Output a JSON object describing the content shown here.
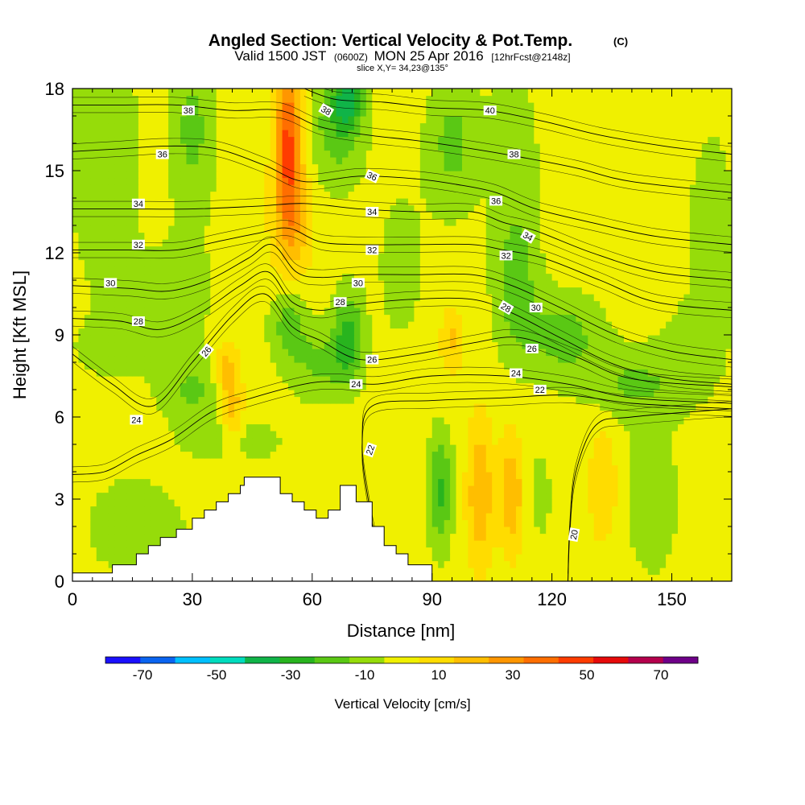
{
  "header": {
    "title_main": "Angled Section: Vertical Velocity & Pot.Temp.",
    "title_suffix": "(C)",
    "valid_prefix": "Valid 1500 JST",
    "valid_utc": "(0600Z)",
    "valid_date": "MON 25 Apr 2016",
    "forecast_info": "[12hrFcst@2148z]",
    "slice_info": "slice X,Y= 34,23@135°"
  },
  "chart_data": {
    "type": "heatmap",
    "xlabel": "Distance [nm]",
    "ylabel": "Height [Kft MSL]",
    "xlim": [
      0,
      165
    ],
    "ylim": [
      0,
      18
    ],
    "x_ticks": [
      "0",
      "30",
      "60",
      "90",
      "120",
      "150"
    ],
    "x_tick_values": [
      0,
      30,
      60,
      90,
      120,
      150
    ],
    "y_ticks": [
      "0",
      "3",
      "6",
      "9",
      "12",
      "15",
      "18"
    ],
    "y_tick_values": [
      0,
      3,
      6,
      9,
      12,
      15,
      18
    ],
    "colorbar": {
      "label": "Vertical Velocity [cm/s]",
      "bounds": [
        -80,
        -70,
        -60,
        -50,
        -40,
        -30,
        -20,
        -10,
        0,
        10,
        20,
        30,
        40,
        50,
        60,
        70,
        80
      ],
      "tick_labels": [
        "-70",
        "-50",
        "-30",
        "-10",
        "10",
        "30",
        "50",
        "70"
      ],
      "tick_values": [
        -70,
        -50,
        -30,
        -10,
        10,
        30,
        50,
        70
      ],
      "colors": [
        "#1a10ff",
        "#0a64f0",
        "#00c0ff",
        "#00dcbe",
        "#10b448",
        "#28b41e",
        "#5ac814",
        "#96dc0a",
        "#f0f000",
        "#ffdc00",
        "#ffbe00",
        "#ff9600",
        "#ff6e00",
        "#ff3c00",
        "#e60a0a",
        "#b4004c",
        "#6e0088"
      ]
    },
    "background_value": 5,
    "velocity_features": [
      {
        "x": 8,
        "y": 15.5,
        "sx": 6,
        "sy": 3.5,
        "value": -14
      },
      {
        "x": 30,
        "y": 16.5,
        "sx": 4,
        "sy": 2.2,
        "value": -18
      },
      {
        "x": 26,
        "y": 10.5,
        "sx": 8,
        "sy": 1.6,
        "value": -9
      },
      {
        "x": 10,
        "y": 8.5,
        "sx": 8,
        "sy": 0.8,
        "value": -8
      },
      {
        "x": 30,
        "y": 7.0,
        "sx": 6,
        "sy": 0.8,
        "value": -16
      },
      {
        "x": 40,
        "y": 5.2,
        "sx": 9,
        "sy": 0.6,
        "value": -11
      },
      {
        "x": 15,
        "y": 2.0,
        "sx": 10,
        "sy": 1.6,
        "value": -9
      },
      {
        "x": 54,
        "y": 16.2,
        "sx": 2.3,
        "sy": 2.0,
        "value": 46
      },
      {
        "x": 55,
        "y": 13.2,
        "sx": 3.5,
        "sy": 1.6,
        "value": 22
      },
      {
        "x": 54,
        "y": 9.5,
        "sx": 3.2,
        "sy": 1.0,
        "value": -19
      },
      {
        "x": 62,
        "y": 8.0,
        "sx": 6,
        "sy": 1.0,
        "value": -16
      },
      {
        "x": 69,
        "y": 9.0,
        "sx": 2.6,
        "sy": 1.2,
        "value": -26
      },
      {
        "x": 66,
        "y": 16.6,
        "sx": 5,
        "sy": 1.6,
        "value": -20
      },
      {
        "x": 69,
        "y": 17.6,
        "sx": 2.5,
        "sy": 0.8,
        "value": -30
      },
      {
        "x": 82,
        "y": 11.5,
        "sx": 5,
        "sy": 2.4,
        "value": -8
      },
      {
        "x": 95,
        "y": 16.0,
        "sx": 4.5,
        "sy": 1.8,
        "value": -18
      },
      {
        "x": 110,
        "y": 16.0,
        "sx": 5,
        "sy": 2.0,
        "value": -10
      },
      {
        "x": 111,
        "y": 11.0,
        "sx": 4,
        "sy": 2.0,
        "value": -20
      },
      {
        "x": 123,
        "y": 9.0,
        "sx": 7,
        "sy": 1.1,
        "value": -19
      },
      {
        "x": 140,
        "y": 7.2,
        "sx": 9,
        "sy": 0.9,
        "value": -15
      },
      {
        "x": 155,
        "y": 8.5,
        "sx": 6,
        "sy": 1.2,
        "value": -9
      },
      {
        "x": 92,
        "y": 3.3,
        "sx": 2.2,
        "sy": 1.5,
        "value": -27
      },
      {
        "x": 102,
        "y": 3.2,
        "sx": 2.2,
        "sy": 1.8,
        "value": 26
      },
      {
        "x": 110,
        "y": 3.2,
        "sx": 2.2,
        "sy": 1.5,
        "value": 24
      },
      {
        "x": 117,
        "y": 3.2,
        "sx": 3,
        "sy": 1.8,
        "value": -7
      },
      {
        "x": 133,
        "y": 3.5,
        "sx": 2.5,
        "sy": 1.5,
        "value": 16
      },
      {
        "x": 145,
        "y": 3.0,
        "sx": 6,
        "sy": 2.5,
        "value": -9
      },
      {
        "x": 40,
        "y": 6.3,
        "sx": 2.0,
        "sy": 1.2,
        "value": 22
      },
      {
        "x": 38,
        "y": 7.8,
        "sx": 2.0,
        "sy": 0.7,
        "value": 16
      },
      {
        "x": 48,
        "y": 1.5,
        "sx": 10,
        "sy": 1.5,
        "value": -9
      },
      {
        "x": 95,
        "y": 8.8,
        "sx": 2,
        "sy": 0.8,
        "value": 17
      },
      {
        "x": 160,
        "y": 13.0,
        "sx": 5,
        "sy": 3.0,
        "value": -9
      }
    ],
    "isentropes": [
      {
        "label": "20",
        "points": [
          [
            124,
            0
          ],
          [
            124.5,
            2
          ],
          [
            126,
            4
          ],
          [
            131,
            5.7
          ],
          [
            140,
            6
          ],
          [
            165,
            6.3
          ]
        ],
        "label_at": [
          125.5,
          1.7
        ]
      },
      {
        "label": "22",
        "points": [
          [
            82,
            0
          ],
          [
            77,
            1
          ],
          [
            74,
            3
          ],
          [
            72.5,
            5
          ],
          [
            75,
            6.4
          ],
          [
            90,
            6.6
          ],
          [
            108,
            6.7
          ],
          [
            124,
            6.8
          ],
          [
            140,
            6.5
          ],
          [
            165,
            6.3
          ]
        ],
        "label_at": [
          74,
          4.9
        ]
      },
      {
        "label": "24",
        "points": [
          [
            0,
            3.9
          ],
          [
            8,
            4
          ],
          [
            16,
            4.6
          ],
          [
            25,
            5.2
          ],
          [
            35,
            6.2
          ],
          [
            45,
            6.7
          ],
          [
            58,
            7.2
          ],
          [
            66,
            7.3
          ],
          [
            76,
            7.2
          ],
          [
            90,
            7.5
          ],
          [
            108,
            7.5
          ],
          [
            124,
            7.2
          ],
          [
            140,
            6.7
          ],
          [
            165,
            6.5
          ]
        ],
        "label_at": [
          15,
          5.9
        ]
      },
      {
        "label": "26",
        "points": [
          [
            0,
            8.3
          ],
          [
            10,
            7.2
          ],
          [
            20,
            6.4
          ],
          [
            30,
            8
          ],
          [
            40,
            9.7
          ],
          [
            48,
            10.5
          ],
          [
            55,
            9.3
          ],
          [
            62,
            8.8
          ],
          [
            72,
            8.1
          ],
          [
            86,
            8.3
          ],
          [
            100,
            8.7
          ],
          [
            112,
            8.9
          ],
          [
            126,
            8.2
          ],
          [
            140,
            7.4
          ],
          [
            165,
            7.1
          ]
        ],
        "label_at": [
          33.5,
          8.4
        ]
      },
      {
        "label": "28",
        "points": [
          [
            0,
            9.6
          ],
          [
            12,
            9.5
          ],
          [
            22,
            9.2
          ],
          [
            32,
            9.8
          ],
          [
            42,
            10.8
          ],
          [
            49,
            11.3
          ],
          [
            55,
            10.2
          ],
          [
            62,
            9.9
          ],
          [
            70,
            10.1
          ],
          [
            85,
            10.3
          ],
          [
            100,
            10.3
          ],
          [
            110,
            9.8
          ],
          [
            122,
            8.9
          ],
          [
            136,
            7.9
          ],
          [
            150,
            7.4
          ],
          [
            165,
            7.2
          ]
        ],
        "label_at": [
          108,
          10.0
        ]
      },
      {
        "label": "30",
        "points": [
          [
            0,
            10.8
          ],
          [
            14,
            10.7
          ],
          [
            24,
            10.6
          ],
          [
            34,
            11
          ],
          [
            44,
            11.8
          ],
          [
            50,
            12.3
          ],
          [
            56,
            11.3
          ],
          [
            62,
            11.1
          ],
          [
            72,
            11.2
          ],
          [
            86,
            11.2
          ],
          [
            100,
            11.2
          ],
          [
            110,
            10.8
          ],
          [
            122,
            10.0
          ],
          [
            136,
            9.0
          ],
          [
            150,
            8.4
          ],
          [
            165,
            8.1
          ]
        ],
        "label_at": [
          116,
          10.0
        ]
      },
      {
        "label": "32",
        "points": [
          [
            0,
            12.1
          ],
          [
            14,
            12.1
          ],
          [
            26,
            12.1
          ],
          [
            36,
            12.4
          ],
          [
            46,
            12.7
          ],
          [
            54,
            12.9
          ],
          [
            62,
            12.4
          ],
          [
            72,
            12.3
          ],
          [
            86,
            12.3
          ],
          [
            100,
            12.3
          ],
          [
            108,
            12.1
          ],
          [
            118,
            11.8
          ],
          [
            132,
            11.0
          ],
          [
            146,
            10.2
          ],
          [
            165,
            9.9
          ]
        ],
        "label_at": [
          15,
          12.3
        ]
      },
      {
        "label": "34",
        "points": [
          [
            0,
            13.6
          ],
          [
            14,
            13.6
          ],
          [
            30,
            13.6
          ],
          [
            46,
            13.7
          ],
          [
            58,
            13.8
          ],
          [
            72,
            13.6
          ],
          [
            86,
            13.5
          ],
          [
            100,
            13.5
          ],
          [
            108,
            13.1
          ],
          [
            116,
            12.8
          ],
          [
            130,
            12.0
          ],
          [
            146,
            11.3
          ],
          [
            165,
            11.0
          ]
        ],
        "label_at": [
          15,
          13.7
        ]
      },
      {
        "label": "36",
        "points": [
          [
            0,
            15.7
          ],
          [
            12,
            15.8
          ],
          [
            24,
            15.9
          ],
          [
            36,
            15.8
          ],
          [
            48,
            15.2
          ],
          [
            58,
            14.6
          ],
          [
            72,
            14.8
          ],
          [
            86,
            14.7
          ],
          [
            96,
            14.5
          ],
          [
            106,
            14.2
          ],
          [
            116,
            13.6
          ],
          [
            130,
            13.1
          ],
          [
            146,
            12.6
          ],
          [
            165,
            12.3
          ]
        ],
        "label_at": [
          22.5,
          15.6
        ]
      },
      {
        "label": "38",
        "points": [
          [
            0,
            17.4
          ],
          [
            12,
            17.4
          ],
          [
            26,
            17.4
          ],
          [
            40,
            17.2
          ],
          [
            52,
            17.2
          ],
          [
            62,
            16.6
          ],
          [
            74,
            16.3
          ],
          [
            86,
            16.1
          ],
          [
            100,
            15.8
          ],
          [
            112,
            15.5
          ],
          [
            126,
            15.1
          ],
          [
            140,
            14.6
          ],
          [
            165,
            14.2
          ]
        ],
        "label_at": [
          26,
          17.2
        ]
      },
      {
        "label": "40",
        "points": [
          [
            58,
            18
          ],
          [
            66,
            17.6
          ],
          [
            78,
            17.5
          ],
          [
            90,
            17.3
          ],
          [
            104,
            17.2
          ],
          [
            118,
            16.8
          ],
          [
            132,
            16.3
          ],
          [
            148,
            15.9
          ],
          [
            165,
            15.6
          ]
        ],
        "label_at": [
          104,
          17.2
        ]
      }
    ],
    "terrain": [
      [
        0,
        0.3
      ],
      [
        10,
        0.3
      ],
      [
        10,
        0.6
      ],
      [
        16,
        0.6
      ],
      [
        16,
        1.0
      ],
      [
        19,
        1.0
      ],
      [
        19,
        1.3
      ],
      [
        22,
        1.3
      ],
      [
        22,
        1.6
      ],
      [
        26,
        1.6
      ],
      [
        26,
        1.9
      ],
      [
        30,
        1.9
      ],
      [
        30,
        2.3
      ],
      [
        33,
        2.3
      ],
      [
        33,
        2.6
      ],
      [
        36,
        2.6
      ],
      [
        36,
        2.9
      ],
      [
        39,
        2.9
      ],
      [
        39,
        3.2
      ],
      [
        42,
        3.2
      ],
      [
        42,
        3.5
      ],
      [
        43,
        3.5
      ],
      [
        43,
        3.8
      ],
      [
        52,
        3.8
      ],
      [
        52,
        3.2
      ],
      [
        55,
        3.2
      ],
      [
        55,
        2.9
      ],
      [
        58,
        2.9
      ],
      [
        58,
        2.6
      ],
      [
        61,
        2.6
      ],
      [
        61,
        2.3
      ],
      [
        64,
        2.3
      ],
      [
        64,
        2.6
      ],
      [
        67,
        2.6
      ],
      [
        67,
        3.5
      ],
      [
        71,
        3.5
      ],
      [
        71,
        2.9
      ],
      [
        75,
        2.9
      ],
      [
        75,
        2.0
      ],
      [
        78,
        2.0
      ],
      [
        78,
        1.3
      ],
      [
        81,
        1.3
      ],
      [
        81,
        1.0
      ],
      [
        84,
        1.0
      ],
      [
        84,
        0.6
      ],
      [
        90,
        0.6
      ],
      [
        90,
        0
      ],
      [
        0,
        0
      ]
    ],
    "annotations": [
      {
        "text": "38",
        "x": 29,
        "y": 17.2,
        "rotate": 0
      },
      {
        "text": "36",
        "x": 22.5,
        "y": 15.6,
        "rotate": 0
      },
      {
        "text": "34",
        "x": 16.5,
        "y": 13.8,
        "rotate": 0
      },
      {
        "text": "32",
        "x": 16.5,
        "y": 12.3,
        "rotate": 0
      },
      {
        "text": "30",
        "x": 9.5,
        "y": 10.9,
        "rotate": 0
      },
      {
        "text": "28",
        "x": 16.5,
        "y": 9.5,
        "rotate": 0
      },
      {
        "text": "26",
        "x": 33.5,
        "y": 8.4,
        "rotate": -50
      },
      {
        "text": "24",
        "x": 16.0,
        "y": 5.9,
        "rotate": 0
      },
      {
        "text": "38",
        "x": 63.5,
        "y": 17.2,
        "rotate": 30
      },
      {
        "text": "36",
        "x": 75.0,
        "y": 14.8,
        "rotate": 25
      },
      {
        "text": "34",
        "x": 75.0,
        "y": 13.5,
        "rotate": 0
      },
      {
        "text": "32",
        "x": 75.0,
        "y": 12.1,
        "rotate": 0
      },
      {
        "text": "30",
        "x": 71.5,
        "y": 10.9,
        "rotate": 0
      },
      {
        "text": "28",
        "x": 67.0,
        "y": 10.2,
        "rotate": 0
      },
      {
        "text": "26",
        "x": 75.0,
        "y": 8.1,
        "rotate": 0
      },
      {
        "text": "24",
        "x": 71.0,
        "y": 7.2,
        "rotate": 0
      },
      {
        "text": "22",
        "x": 74.5,
        "y": 4.8,
        "rotate": -70
      },
      {
        "text": "40",
        "x": 104.5,
        "y": 17.2,
        "rotate": 0
      },
      {
        "text": "38",
        "x": 110.5,
        "y": 15.6,
        "rotate": 0
      },
      {
        "text": "36",
        "x": 106.0,
        "y": 13.9,
        "rotate": 0
      },
      {
        "text": "34",
        "x": 114.0,
        "y": 12.6,
        "rotate": 30
      },
      {
        "text": "32",
        "x": 108.5,
        "y": 11.9,
        "rotate": 0
      },
      {
        "text": "28",
        "x": 108.5,
        "y": 10.0,
        "rotate": 30
      },
      {
        "text": "30",
        "x": 116.0,
        "y": 10.0,
        "rotate": 0
      },
      {
        "text": "26",
        "x": 115.0,
        "y": 8.5,
        "rotate": 0
      },
      {
        "text": "24",
        "x": 111.0,
        "y": 7.6,
        "rotate": 0
      },
      {
        "text": "22",
        "x": 117.0,
        "y": 7.0,
        "rotate": 0
      },
      {
        "text": "20",
        "x": 125.5,
        "y": 1.7,
        "rotate": -80
      }
    ]
  }
}
